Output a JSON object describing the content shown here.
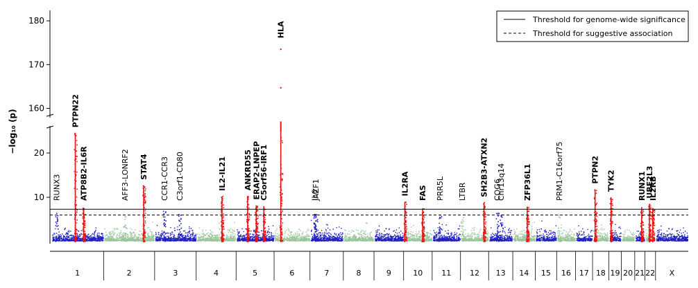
{
  "chart_data": {
    "type": "scatter",
    "title": "",
    "xlabel": "",
    "ylabel": "−log₁₀ (p)",
    "axis_break": {
      "lower_range": [
        0,
        25
      ],
      "upper_range": [
        155,
        182
      ]
    },
    "y_ticks": [
      10,
      20,
      160,
      170,
      180
    ],
    "thresholds": [
      {
        "name": "Threshold for genome-wide significance",
        "value": 7.3,
        "style": "solid"
      },
      {
        "name": "Threshold for suggestive association",
        "value": 6,
        "style": "dashed"
      }
    ],
    "chromosomes": [
      {
        "label": "1",
        "start": 0,
        "end": 249
      },
      {
        "label": "2",
        "start": 249,
        "end": 492
      },
      {
        "label": "3",
        "start": 492,
        "end": 690
      },
      {
        "label": "4",
        "start": 690,
        "end": 880
      },
      {
        "label": "5",
        "start": 880,
        "end": 1061
      },
      {
        "label": "6",
        "start": 1061,
        "end": 1232
      },
      {
        "label": "7",
        "start": 1232,
        "end": 1391
      },
      {
        "label": "8",
        "start": 1391,
        "end": 1537
      },
      {
        "label": "9",
        "start": 1537,
        "end": 1678
      },
      {
        "label": "10",
        "start": 1678,
        "end": 1814
      },
      {
        "label": "11",
        "start": 1814,
        "end": 1949
      },
      {
        "label": "12",
        "start": 1949,
        "end": 2083
      },
      {
        "label": "13",
        "start": 2083,
        "end": 2198
      },
      {
        "label": "14",
        "start": 2198,
        "end": 2305
      },
      {
        "label": "15",
        "start": 2305,
        "end": 2407
      },
      {
        "label": "16",
        "start": 2407,
        "end": 2497
      },
      {
        "label": "17",
        "start": 2497,
        "end": 2578
      },
      {
        "label": "18",
        "start": 2578,
        "end": 2656
      },
      {
        "label": "19",
        "start": 2656,
        "end": 2715
      },
      {
        "label": "20",
        "start": 2715,
        "end": 2779
      },
      {
        "label": "21",
        "start": 2779,
        "end": 2827
      },
      {
        "label": "22",
        "start": 2827,
        "end": 2878
      },
      {
        "label": "X",
        "start": 2878,
        "end": 3034
      }
    ],
    "peaks": [
      {
        "gene": "RUNX3",
        "pos": 25,
        "peak": 6.5,
        "bold": false,
        "sig": false
      },
      {
        "gene": "PTPN22",
        "pos": 114,
        "peak": 24.5,
        "bold": true,
        "sig": true
      },
      {
        "gene": "ATP8B2-IL6R",
        "pos": 154,
        "peak": 7.6,
        "bold": true,
        "sig": true
      },
      {
        "gene": "AFF3-LONRF2",
        "pos": 350,
        "peak": 6.0,
        "bold": false,
        "sig": false
      },
      {
        "gene": "STAT4",
        "pos": 440,
        "peak": 12.7,
        "bold": true,
        "sig": true
      },
      {
        "gene": "CCR1-CCR3",
        "pos": 538,
        "peak": 6.8,
        "bold": false,
        "sig": false
      },
      {
        "gene": "C3orf1-CD80",
        "pos": 611,
        "peak": 6.3,
        "bold": false,
        "sig": false
      },
      {
        "gene": "IL2-IL21",
        "pos": 813,
        "peak": 10.2,
        "bold": true,
        "sig": true
      },
      {
        "gene": "ANKRD55",
        "pos": 935,
        "peak": 10.3,
        "bold": true,
        "sig": true
      },
      {
        "gene": "ERAP2-LNPEP",
        "pos": 976,
        "peak": 8.2,
        "bold": true,
        "sig": true
      },
      {
        "gene": "C5orf56-IRF1",
        "pos": 1012,
        "peak": 8.0,
        "bold": true,
        "sig": true
      },
      {
        "gene": "HLA",
        "pos": 1093,
        "peak": 173.5,
        "bold": true,
        "sig": true
      },
      {
        "gene": "IL6",
        "pos": 1254,
        "peak": 6.5,
        "bold": false,
        "sig": false
      },
      {
        "gene": "JAZF1",
        "pos": 1260,
        "peak": 6.1,
        "bold": false,
        "sig": false
      },
      {
        "gene": "IL2RA",
        "pos": 1684,
        "peak": 9.0,
        "bold": true,
        "sig": true
      },
      {
        "gene": "FAS",
        "pos": 1769,
        "peak": 7.5,
        "bold": true,
        "sig": true
      },
      {
        "gene": "PRR5L",
        "pos": 1850,
        "peak": 6.0,
        "bold": false,
        "sig": false
      },
      {
        "gene": "LTBR",
        "pos": 1956,
        "peak": 6.4,
        "bold": false,
        "sig": false
      },
      {
        "gene": "SH2B3-ATXN2",
        "pos": 2061,
        "peak": 8.8,
        "bold": true,
        "sig": true
      },
      {
        "gene": "COG6",
        "pos": 2123,
        "peak": 6.6,
        "bold": false,
        "sig": false
      },
      {
        "gene": "Chr13q14",
        "pos": 2142,
        "peak": 6.2,
        "bold": false,
        "sig": false
      },
      {
        "gene": "ZFP36L1",
        "pos": 2267,
        "peak": 7.9,
        "bold": true,
        "sig": true
      },
      {
        "gene": "PRM1-C16orf75",
        "pos": 2419,
        "peak": 6.3,
        "bold": false,
        "sig": false
      },
      {
        "gene": "PTPN2",
        "pos": 2590,
        "peak": 11.8,
        "bold": true,
        "sig": true
      },
      {
        "gene": "TYK2",
        "pos": 2666,
        "peak": 10.0,
        "bold": true,
        "sig": true
      },
      {
        "gene": "RUNX1",
        "pos": 2812,
        "peak": 7.8,
        "bold": true,
        "sig": true
      },
      {
        "gene": "UBE2L3",
        "pos": 2849,
        "peak": 8.5,
        "bold": true,
        "sig": true
      },
      {
        "gene": "IL2RB",
        "pos": 2865,
        "peak": 7.6,
        "bold": true,
        "sig": true
      }
    ],
    "outliers": [
      {
        "pos": 1093,
        "value": 164.7
      }
    ],
    "colors": {
      "odd_chromosome": "#1f1fbf",
      "even_chromosome": "#99c699",
      "significant": "#ee1111"
    },
    "legend": {
      "position": "top-right",
      "entries": [
        "Threshold for genome-wide significance",
        "Threshold for suggestive association"
      ]
    },
    "grid": false
  }
}
